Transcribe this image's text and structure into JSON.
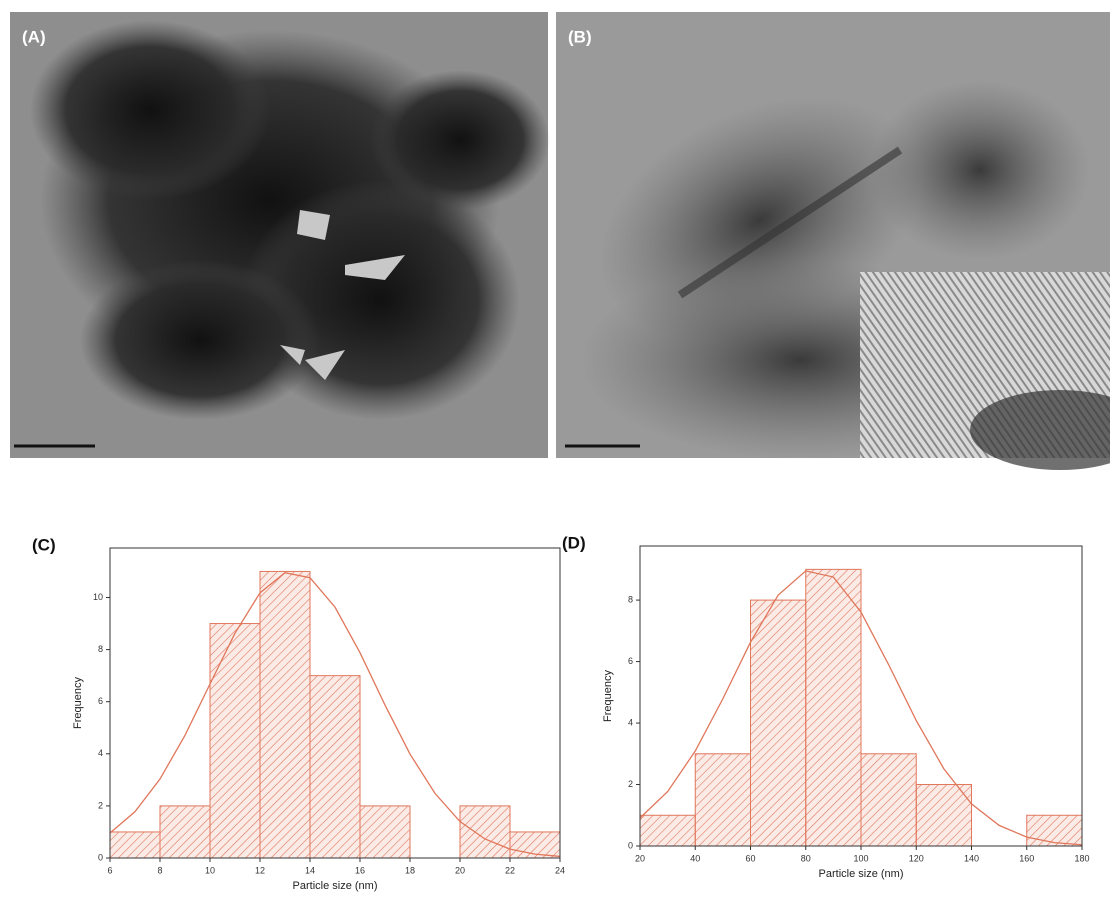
{
  "image_panels": [
    {
      "label": "(A)"
    },
    {
      "label": "(B)"
    }
  ],
  "chart_data": [
    {
      "type": "histogram",
      "title": "(C)",
      "x_label": "Particle size (nm)",
      "y_label": "Frequency",
      "bins": [
        6,
        8,
        10,
        12,
        14,
        16,
        18,
        20,
        22,
        24
      ],
      "values": [
        1,
        2,
        9,
        11,
        7,
        2,
        0,
        2,
        1
      ],
      "color": "#e0765a",
      "fit": {
        "x": [
          6,
          7,
          8,
          9,
          10,
          11,
          12,
          13,
          14,
          15,
          16,
          17,
          18,
          19,
          20,
          21,
          22,
          23,
          24
        ],
        "y": [
          0.96,
          1.78,
          3.03,
          4.71,
          6.68,
          8.63,
          10.18,
          10.95,
          10.76,
          9.63,
          7.88,
          5.87,
          3.99,
          2.48,
          1.4,
          0.73,
          0.34,
          0.15,
          0.06
        ]
      },
      "xlim": [
        6,
        24
      ],
      "ylim": [
        0,
        11.9
      ],
      "xticks": [
        6,
        8,
        10,
        12,
        14,
        16,
        18,
        20,
        22,
        24
      ],
      "yticks": [
        0,
        2,
        4,
        6,
        8,
        10
      ]
    },
    {
      "type": "histogram",
      "title": "(D)",
      "x_label": "Particle size (nm)",
      "y_label": "Frequency",
      "bins": [
        20,
        40,
        60,
        80,
        100,
        120,
        140,
        160,
        180
      ],
      "values": [
        1,
        3,
        8,
        9,
        3,
        2,
        0,
        1
      ],
      "color": "#e0765a",
      "fit": {
        "x": [
          20,
          30,
          40,
          50,
          60,
          70,
          80,
          90,
          100,
          110,
          120,
          130,
          140,
          150,
          160,
          170,
          180
        ],
        "y": [
          0.91,
          1.77,
          3.09,
          4.79,
          6.63,
          8.16,
          8.95,
          8.75,
          7.61,
          5.9,
          4.08,
          2.51,
          1.37,
          0.67,
          0.29,
          0.11,
          0.04
        ]
      },
      "xlim": [
        20,
        180
      ],
      "ylim": [
        0,
        9.76
      ],
      "xticks": [
        20,
        40,
        60,
        80,
        100,
        120,
        140,
        160,
        180
      ],
      "yticks": [
        0,
        2,
        4,
        6,
        8
      ]
    }
  ]
}
